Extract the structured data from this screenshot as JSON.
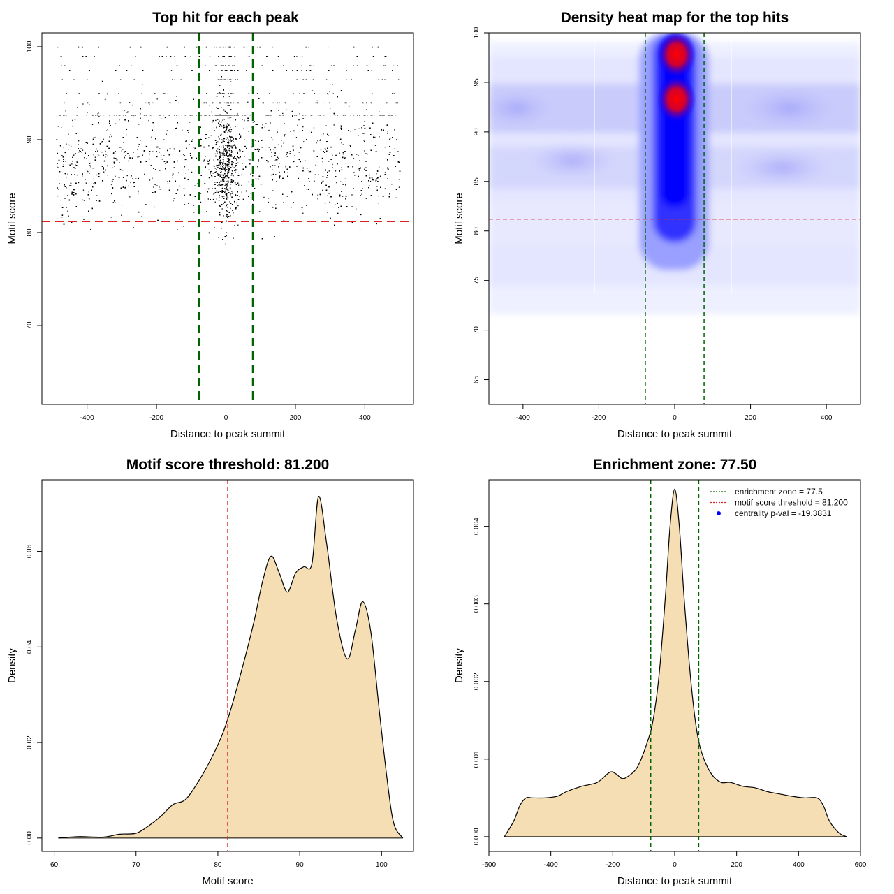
{
  "chart_data": [
    {
      "id": "scatter",
      "type": "scatter",
      "title": "Top hit for each peak",
      "xlabel": "Distance to peak summit",
      "ylabel": "Motif score",
      "xlim": [
        -530,
        540
      ],
      "ylim": [
        61.5,
        101.5
      ],
      "xticks": [
        -400,
        -200,
        0,
        200,
        400
      ],
      "yticks": [
        70,
        80,
        90,
        100
      ],
      "threshold_y": 81.2,
      "zone_x": [
        -77.5,
        77.5
      ],
      "threshold_color": "#dd2222",
      "zone_color": "#006400",
      "point_color": "#000000",
      "point_count_shown": 6500,
      "score_levels": [
        100,
        99,
        98,
        97.5,
        96.5,
        95,
        94,
        92.7
      ]
    },
    {
      "id": "heatmap",
      "type": "heatmap",
      "title": "Density heat map for the top hits",
      "xlabel": "Distance to peak summit",
      "ylabel": "Motif score",
      "xlim": [
        -490,
        490
      ],
      "ylim": [
        62.5,
        100
      ],
      "xticks": [
        -400,
        -200,
        0,
        200,
        400
      ],
      "yticks": [
        65,
        70,
        75,
        80,
        85,
        90,
        95,
        100
      ],
      "threshold_y": 81.2,
      "zone_x": [
        -77.5,
        77.5
      ],
      "color_low": "#ffffff",
      "color_mid": "#0000ff",
      "color_high": "#ff0000",
      "hotspots": [
        {
          "x": 5,
          "y": 97.8,
          "level": "high"
        },
        {
          "x": 5,
          "y": 93.3,
          "level": "high"
        }
      ]
    },
    {
      "id": "score_density",
      "type": "area",
      "title": "Motif score threshold: 81.200",
      "xlabel": "Motif score",
      "ylabel": "Density",
      "xlim": [
        58.5,
        103.9
      ],
      "ylim": [
        -0.0028,
        0.075
      ],
      "xticks": [
        60,
        70,
        80,
        90,
        100
      ],
      "yticks": [
        0,
        0.02,
        0.04,
        0.06
      ],
      "ytick_labels": [
        "0.00",
        "0.02",
        "0.04",
        "0.06"
      ],
      "threshold_x": 81.2,
      "fill_color": "#f5deb3",
      "line_color": "#000000",
      "threshold_color": "#dd2222",
      "x": [
        60.5,
        63,
        66,
        68,
        70,
        71.5,
        73,
        74.5,
        76,
        77.5,
        79,
        80.5,
        81.5,
        82.5,
        83.5,
        84.5,
        85.5,
        86.5,
        87.5,
        88.5,
        89.5,
        90.5,
        91.5,
        92.3,
        93.3,
        94.5,
        95.8,
        96.8,
        97.7,
        98.7,
        99.7,
        100.7,
        101.5,
        102.6
      ],
      "values": [
        0.0,
        0.0003,
        0.0002,
        0.0008,
        0.001,
        0.0025,
        0.0045,
        0.007,
        0.008,
        0.0115,
        0.016,
        0.0215,
        0.0265,
        0.0325,
        0.039,
        0.046,
        0.054,
        0.059,
        0.0555,
        0.0515,
        0.0555,
        0.0568,
        0.0575,
        0.0715,
        0.0615,
        0.046,
        0.0375,
        0.0435,
        0.0495,
        0.043,
        0.027,
        0.012,
        0.003,
        0.0
      ]
    },
    {
      "id": "distance_density",
      "type": "area",
      "title": "Enrichment zone: 77.50",
      "xlabel": "Distance to peak summit",
      "ylabel": "Density",
      "xlim": [
        -600,
        600
      ],
      "ylim": [
        -0.00019,
        0.0046
      ],
      "xticks": [
        -600,
        -400,
        -200,
        0,
        200,
        400,
        600
      ],
      "yticks": [
        0,
        0.001,
        0.002,
        0.003,
        0.004
      ],
      "ytick_labels": [
        "0.000",
        "0.001",
        "0.002",
        "0.003",
        "0.004"
      ],
      "zone_x": [
        -77.5,
        77.5
      ],
      "fill_color": "#f5deb3",
      "line_color": "#000000",
      "zone_color": "#006400",
      "x": [
        -550,
        -520,
        -500,
        -480,
        -460,
        -420,
        -380,
        -350,
        -300,
        -250,
        -210,
        -190,
        -170,
        -150,
        -120,
        -90,
        -70,
        -50,
        -30,
        -15,
        0,
        15,
        30,
        50,
        70,
        90,
        120,
        150,
        180,
        220,
        260,
        300,
        340,
        380,
        420,
        460,
        480,
        500,
        530,
        555
      ],
      "values": [
        0.0,
        0.0002,
        0.0004,
        0.0005,
        0.0005,
        0.0005,
        0.00052,
        0.00058,
        0.00065,
        0.0007,
        0.00083,
        0.00081,
        0.00075,
        0.00078,
        0.0009,
        0.0012,
        0.0015,
        0.0021,
        0.0031,
        0.004,
        0.00448,
        0.004,
        0.0031,
        0.0021,
        0.0014,
        0.00105,
        0.0008,
        0.0007,
        0.0007,
        0.00065,
        0.00063,
        0.00058,
        0.00055,
        0.00052,
        0.0005,
        0.0005,
        0.0004,
        0.0002,
        5e-05,
        0.0
      ],
      "legend": [
        {
          "label": "enrichment zone = 77.5",
          "color": "#006400",
          "kind": "dotted-line"
        },
        {
          "label": "motif score threshold = 81.200",
          "color": "#dd2222",
          "kind": "dotted-line"
        },
        {
          "label": "centrality p-val = -19.3831",
          "color": "#0000ff",
          "kind": "dot"
        }
      ],
      "legend_position": "top-right"
    }
  ]
}
